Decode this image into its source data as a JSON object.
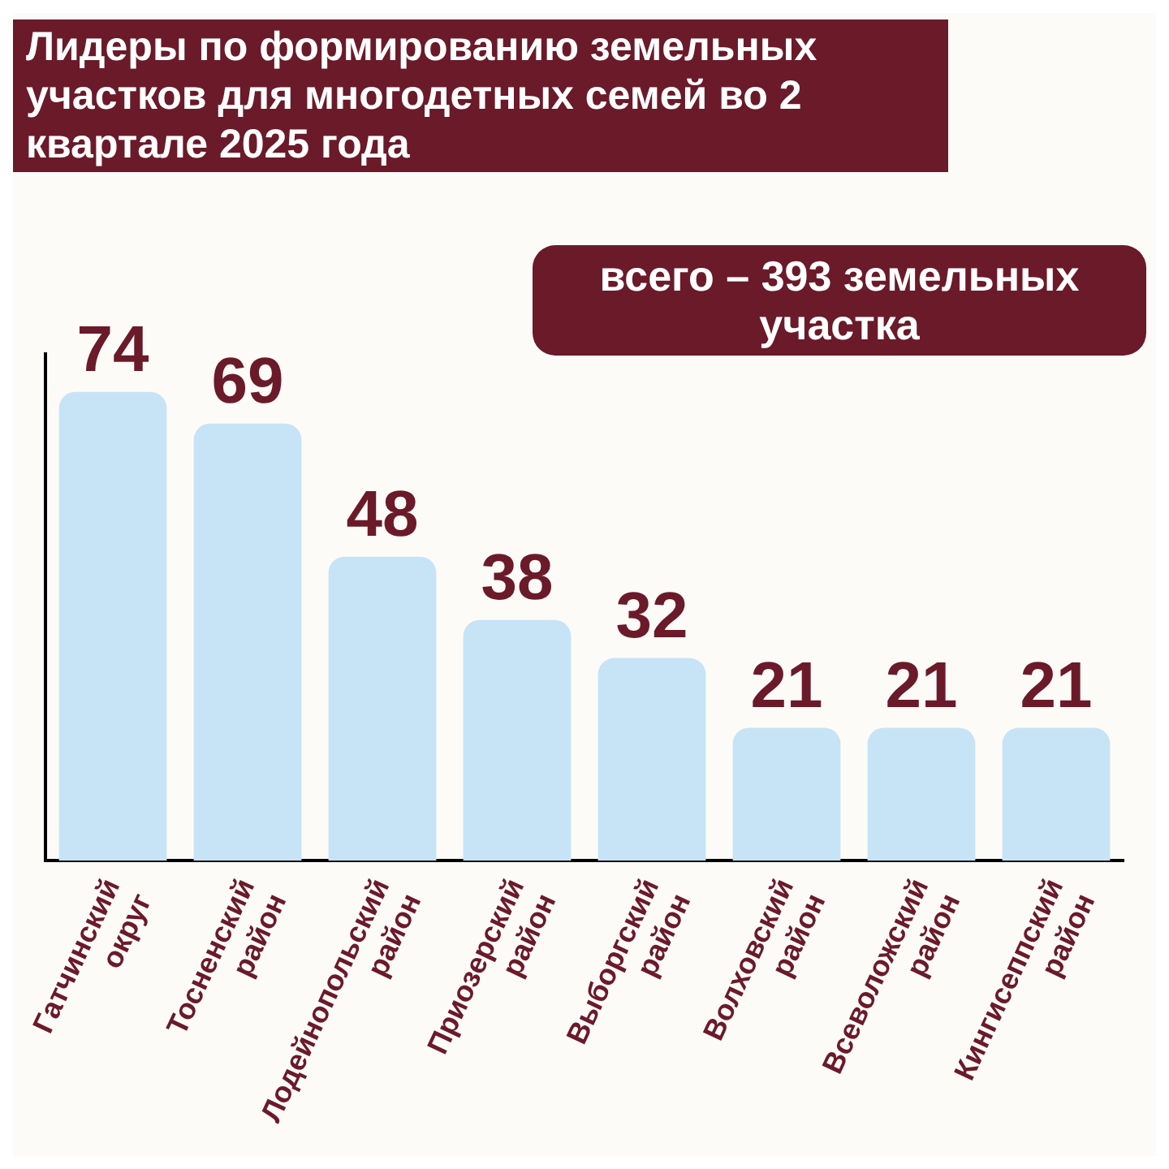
{
  "chart_data": {
    "type": "bar",
    "title": "Лидеры по формированию земельных участков для многодетных семей во 2 квартале 2025 года",
    "categories": [
      "Гатчинский округ",
      "Тосненский район",
      "Лодейнопольский район",
      "Приозерский район",
      "Выборгский район",
      "Волховский район",
      "Всеволожский район",
      "Кингисеппский район"
    ],
    "values": [
      74,
      69,
      48,
      38,
      32,
      21,
      21,
      21
    ],
    "color": "#c6e4f6",
    "data_labels": true,
    "tick_labels": "x",
    "grid": false,
    "legend": false,
    "annotations": [
      "всего – 393 земельных участка"
    ]
  }
}
